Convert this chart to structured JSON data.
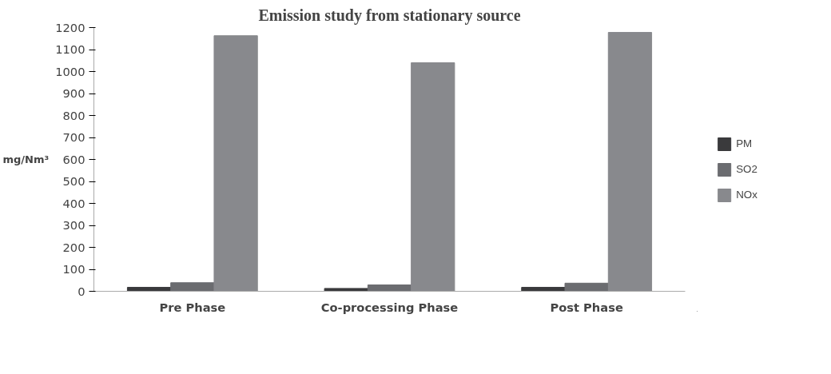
{
  "chart_data": {
    "type": "bar",
    "title": "Emission study from stationary source",
    "ylabel": "mg/Nm³",
    "categories": [
      "Pre Phase",
      "Co-processing Phase",
      "Post Phase"
    ],
    "series": [
      {
        "name": "PM",
        "color": "#3a3a3c",
        "values": [
          18,
          13,
          18
        ]
      },
      {
        "name": "SO2",
        "color": "#6b6c70",
        "values": [
          39,
          29,
          37
        ]
      },
      {
        "name": "NOx",
        "color": "#88898d",
        "values": [
          1163,
          1040,
          1178
        ]
      }
    ],
    "ylim": [
      0,
      1200
    ],
    "yticks": [
      0,
      100,
      200,
      300,
      400,
      500,
      600,
      700,
      800,
      900,
      1000,
      1100,
      1200
    ],
    "grid": false,
    "legend": "right"
  }
}
